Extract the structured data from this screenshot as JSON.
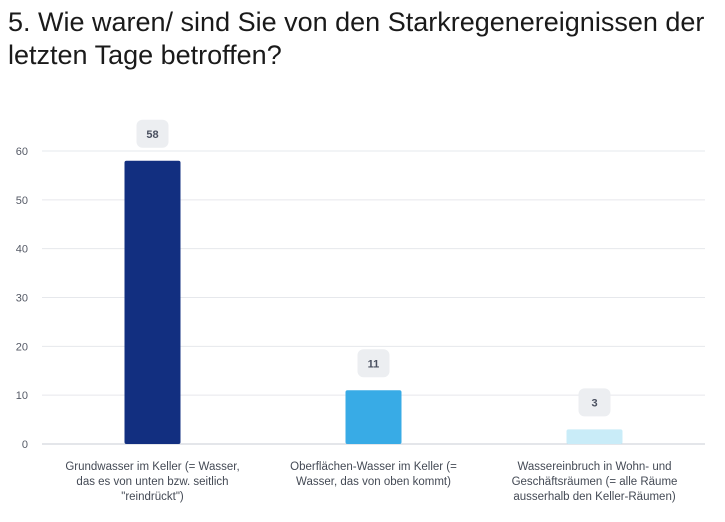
{
  "title": "5. Wie waren/ sind Sie von den Starkregenereignissen der letzten Tage betroffen?",
  "chart_data": {
    "type": "bar",
    "categories": [
      "Grundwasser im Keller (= Wasser, das es von unten bzw. seitlich \"reindrückt\")",
      "Oberflächen-Wasser im Keller (= Wasser, das von oben kommt)",
      "Wassereinbruch in Wohn- und Geschäftsräumen (= alle Räume ausserhalb den Keller-Räumen)"
    ],
    "category_lines": [
      [
        "Grundwasser im Keller (= Wasser,",
        "das es von unten bzw. seitlich",
        "\"reindrückt\")"
      ],
      [
        "Oberflächen-Wasser im Keller (=",
        "Wasser, das von oben kommt)"
      ],
      [
        "Wassereinbruch in Wohn- und",
        "Geschäftsräumen (= alle Räume",
        "ausserhalb den Keller-Räumen)"
      ]
    ],
    "values": [
      58,
      11,
      3
    ],
    "data_labels": [
      "58",
      "11",
      "3"
    ],
    "colors": [
      "#122f80",
      "#38abe6",
      "#c9ecf8"
    ],
    "ylim": [
      0,
      60
    ],
    "yticks": [
      "0",
      "10",
      "20",
      "30",
      "40",
      "50",
      "60"
    ],
    "grid": true,
    "xlabel": "",
    "ylabel": ""
  }
}
